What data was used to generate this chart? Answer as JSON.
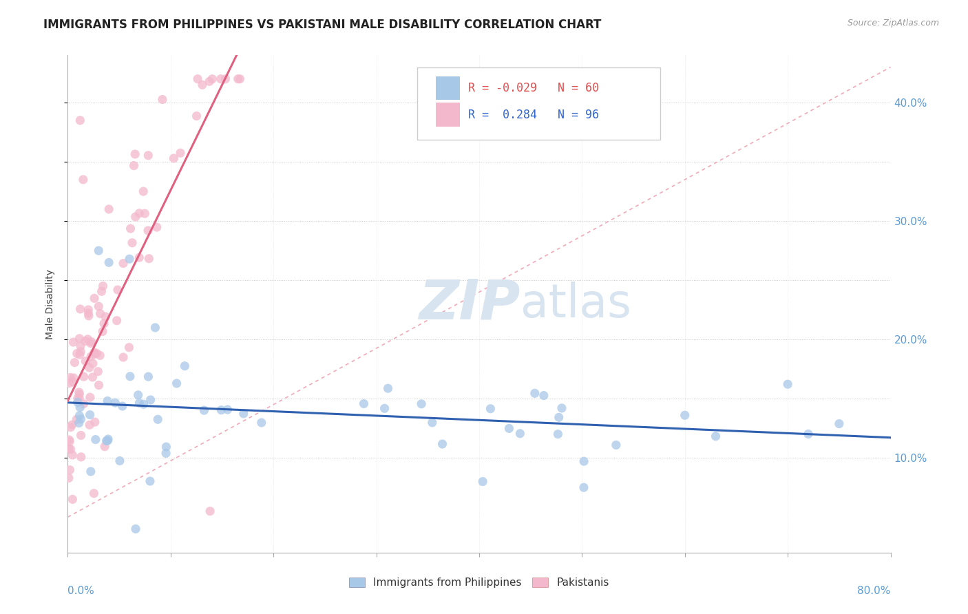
{
  "title": "IMMIGRANTS FROM PHILIPPINES VS PAKISTANI MALE DISABILITY CORRELATION CHART",
  "source": "Source: ZipAtlas.com",
  "ylabel": "Male Disability",
  "xlim": [
    0.0,
    0.8
  ],
  "ylim": [
    0.02,
    0.44
  ],
  "blue_R": -0.029,
  "blue_N": 60,
  "pink_R": 0.284,
  "pink_N": 96,
  "blue_color": "#a8c8e8",
  "pink_color": "#f4b8cc",
  "blue_line_color": "#3060b0",
  "pink_line_color": "#e06080",
  "ref_line_color": "#f0a0b0",
  "watermark_color": "#d8e4f0",
  "seed": 17
}
